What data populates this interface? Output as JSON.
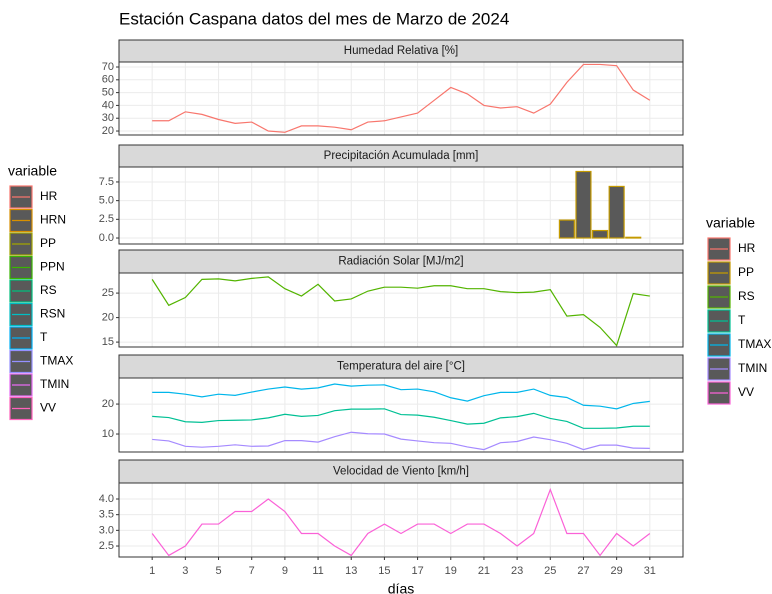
{
  "title": "Estación Caspana datos del mes de Marzo de 2024",
  "legend_left": {
    "title": "variable",
    "items": [
      {
        "name": "HR",
        "color": "#F8766D"
      },
      {
        "name": "HRN",
        "color": "#D89000"
      },
      {
        "name": "PP",
        "color": "#A3A500"
      },
      {
        "name": "PPN",
        "color": "#39B600"
      },
      {
        "name": "RS",
        "color": "#00BF7D"
      },
      {
        "name": "RSN",
        "color": "#00BFC4"
      },
      {
        "name": "T",
        "color": "#00B0F6"
      },
      {
        "name": "TMAX",
        "color": "#9590FF"
      },
      {
        "name": "TMIN",
        "color": "#E76BF3"
      },
      {
        "name": "VV",
        "color": "#FF62BC"
      }
    ]
  },
  "legend_right_title": "variable",
  "chart_data": [
    {
      "type": "line",
      "title": "Humedad Relativa [%]",
      "x": [
        1,
        2,
        3,
        4,
        5,
        6,
        7,
        8,
        9,
        10,
        11,
        12,
        13,
        14,
        15,
        16,
        17,
        18,
        19,
        20,
        21,
        22,
        23,
        24,
        25,
        26,
        27,
        28,
        29,
        30,
        31
      ],
      "xlim": [
        -1,
        33
      ],
      "series": [
        {
          "name": "HR",
          "color": "#F8766D",
          "values": [
            28,
            28,
            35,
            33,
            29,
            26,
            27,
            20,
            19,
            24,
            24,
            23,
            21,
            27,
            28,
            31,
            34,
            44,
            54,
            49,
            40,
            38,
            39,
            34,
            41,
            58,
            72,
            72,
            71,
            52,
            44
          ]
        }
      ],
      "ylim": [
        16.9,
        73.9
      ],
      "yticks": [
        20,
        30,
        40,
        50,
        60,
        70
      ],
      "grid": true
    },
    {
      "type": "bar",
      "title": "Precipitación Acumulada [mm]",
      "x": [
        1,
        2,
        3,
        4,
        5,
        6,
        7,
        8,
        9,
        10,
        11,
        12,
        13,
        14,
        15,
        16,
        17,
        18,
        19,
        20,
        21,
        22,
        23,
        24,
        25,
        26,
        27,
        28,
        29,
        30,
        31
      ],
      "xlim": [
        -1,
        33
      ],
      "series": [
        {
          "name": "PP",
          "color": "#C49A00",
          "values": [
            0,
            0,
            0,
            0,
            0,
            0,
            0,
            0,
            0,
            0,
            0,
            0,
            0,
            0,
            0,
            0,
            0,
            0,
            0,
            0,
            0,
            0,
            0,
            0,
            0,
            2.4,
            8.9,
            1.0,
            6.9,
            0.1,
            0
          ]
        }
      ],
      "ylim": [
        -0.8,
        9.5
      ],
      "yticks": [
        {
          "value": 0,
          "label": "0.0"
        },
        {
          "value": 2.5,
          "label": "2.5"
        },
        {
          "value": 5,
          "label": "5.0"
        },
        {
          "value": 7.5,
          "label": "7.5"
        }
      ],
      "grid": true
    },
    {
      "type": "line",
      "title": "Radiación Solar [MJ/m2]",
      "x": [
        1,
        2,
        3,
        4,
        5,
        6,
        7,
        8,
        9,
        10,
        11,
        12,
        13,
        14,
        15,
        16,
        17,
        18,
        19,
        20,
        21,
        22,
        23,
        24,
        25,
        26,
        27,
        28,
        29,
        30,
        31
      ],
      "xlim": [
        -1,
        33
      ],
      "series": [
        {
          "name": "RS",
          "color": "#53B400",
          "values": [
            27.8,
            22.5,
            24.1,
            27.8,
            27.9,
            27.5,
            28.0,
            28.3,
            25.9,
            24.4,
            26.8,
            23.4,
            23.8,
            25.4,
            26.2,
            26.2,
            26.0,
            26.5,
            26.5,
            25.9,
            25.9,
            25.3,
            25.1,
            25.2,
            25.7,
            20.3,
            20.6,
            18.0,
            14.3,
            24.9,
            24.4
          ]
        }
      ],
      "ylim": [
        14.0,
        29.1
      ],
      "yticks": [
        15,
        20,
        25
      ],
      "grid": true
    },
    {
      "type": "line",
      "title": "Temperatura del aire [°C]",
      "x": [
        1,
        2,
        3,
        4,
        5,
        6,
        7,
        8,
        9,
        10,
        11,
        12,
        13,
        14,
        15,
        16,
        17,
        18,
        19,
        20,
        21,
        22,
        23,
        24,
        25,
        26,
        27,
        28,
        29,
        30,
        31
      ],
      "xlim": [
        -1,
        33
      ],
      "series": [
        {
          "name": "T",
          "color": "#00C094",
          "values": [
            15.9,
            15.5,
            14.1,
            13.9,
            14.5,
            14.6,
            14.7,
            15.4,
            16.6,
            15.9,
            16.2,
            17.8,
            18.3,
            18.3,
            18.4,
            16.5,
            16.3,
            15.6,
            14.5,
            13.3,
            13.6,
            15.4,
            15.8,
            16.9,
            15.2,
            14.2,
            11.9,
            11.9,
            12.0,
            12.6,
            12.6
          ]
        },
        {
          "name": "TMAX",
          "color": "#00B6EB",
          "values": [
            23.9,
            23.9,
            23.3,
            22.4,
            23.3,
            22.9,
            24.0,
            25.0,
            25.7,
            25.0,
            25.4,
            26.7,
            26.0,
            26.3,
            26.4,
            24.8,
            25.0,
            24.1,
            22.1,
            21.0,
            22.8,
            23.9,
            23.9,
            25.0,
            22.9,
            22.2,
            19.6,
            19.3,
            18.4,
            20.2,
            20.9
          ]
        },
        {
          "name": "TMIN",
          "color": "#A58AFF",
          "values": [
            8.2,
            7.7,
            5.9,
            5.6,
            5.9,
            6.4,
            5.9,
            6.0,
            7.8,
            7.8,
            7.3,
            9.1,
            10.6,
            10.1,
            10.0,
            8.3,
            7.7,
            7.1,
            6.9,
            5.7,
            4.8,
            7.1,
            7.5,
            9.0,
            8.1,
            6.9,
            4.8,
            6.3,
            6.3,
            5.3,
            5.2
          ]
        }
      ],
      "ylim": [
        4,
        28.7
      ],
      "yticks": [
        10,
        20
      ],
      "grid": true
    },
    {
      "type": "line",
      "title": "Velocidad de Viento [km/h]",
      "x": [
        1,
        2,
        3,
        4,
        5,
        6,
        7,
        8,
        9,
        10,
        11,
        12,
        13,
        14,
        15,
        16,
        17,
        18,
        19,
        20,
        21,
        22,
        23,
        24,
        25,
        26,
        27,
        28,
        29,
        30,
        31
      ],
      "xlim": [
        -1,
        33
      ],
      "xlabel": "días",
      "xticks": [
        1,
        3,
        5,
        7,
        9,
        11,
        13,
        15,
        17,
        19,
        21,
        23,
        25,
        27,
        29,
        31
      ],
      "series": [
        {
          "name": "VV",
          "color": "#FB61D7",
          "values": [
            2.9,
            2.2,
            2.5,
            3.2,
            3.2,
            3.6,
            3.6,
            4.0,
            3.6,
            2.9,
            2.9,
            2.5,
            2.2,
            2.9,
            3.2,
            2.9,
            3.2,
            3.2,
            2.9,
            3.2,
            3.2,
            2.9,
            2.5,
            2.9,
            4.3,
            2.9,
            2.9,
            2.2,
            2.9,
            2.5,
            2.9
          ]
        }
      ],
      "ylim": [
        2.15,
        4.51
      ],
      "yticks": [
        2.5,
        {
          "value": 3,
          "label": "3.0"
        },
        3.5,
        {
          "value": 4,
          "label": "4.0"
        }
      ],
      "grid": true
    }
  ]
}
